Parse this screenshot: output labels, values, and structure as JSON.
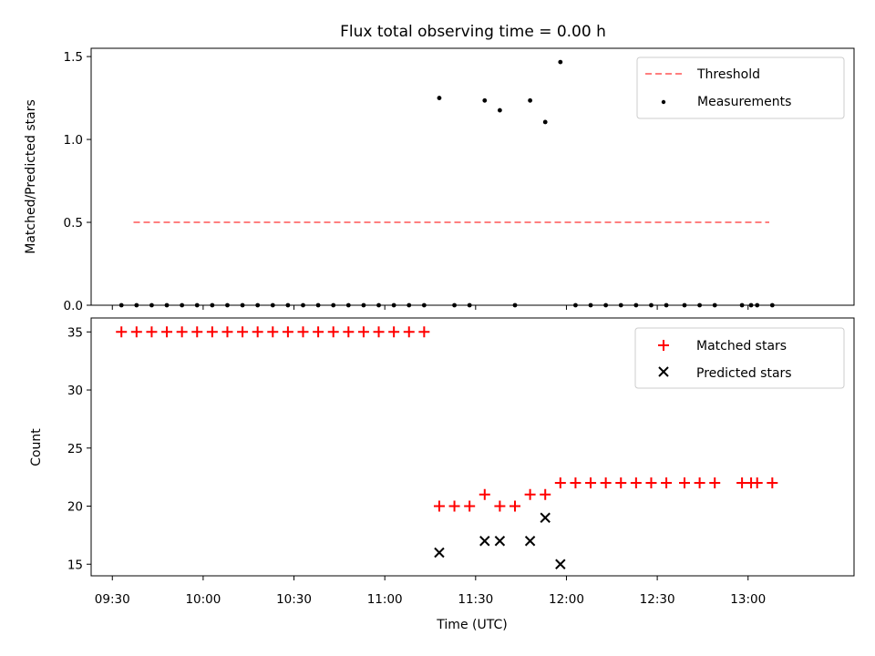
{
  "chart_data": [
    {
      "type": "scatter",
      "title": "Flux total observing time = 0.00 h",
      "xlabel": "",
      "ylabel": "Matched/Predicted stars",
      "ylim": [
        0,
        1.55
      ],
      "yticks": [
        "0.0",
        "0.5",
        "1.0",
        "1.5"
      ],
      "legend_position": "top-right",
      "threshold": {
        "name": "Threshold",
        "value": 0.5,
        "x_start": "09:37",
        "x_end": "13:07",
        "color": "#ff7f7f"
      },
      "series": [
        {
          "name": "Measurements",
          "color": "#000000",
          "points": [
            [
              "09:33",
              0
            ],
            [
              "09:38",
              0
            ],
            [
              "09:43",
              0
            ],
            [
              "09:48",
              0
            ],
            [
              "09:53",
              0
            ],
            [
              "09:58",
              0
            ],
            [
              "10:03",
              0
            ],
            [
              "10:08",
              0
            ],
            [
              "10:13",
              0
            ],
            [
              "10:18",
              0
            ],
            [
              "10:23",
              0
            ],
            [
              "10:28",
              0
            ],
            [
              "10:33",
              0
            ],
            [
              "10:38",
              0
            ],
            [
              "10:43",
              0
            ],
            [
              "10:48",
              0
            ],
            [
              "10:53",
              0
            ],
            [
              "10:58",
              0
            ],
            [
              "11:03",
              0
            ],
            [
              "11:08",
              0
            ],
            [
              "11:13",
              0
            ],
            [
              "11:18",
              1.25
            ],
            [
              "11:23",
              0
            ],
            [
              "11:28",
              0
            ],
            [
              "11:33",
              1.235
            ],
            [
              "11:38",
              1.176
            ],
            [
              "11:43",
              0
            ],
            [
              "11:48",
              1.235
            ],
            [
              "11:53",
              1.105
            ],
            [
              "11:58",
              1.467
            ],
            [
              "12:03",
              0
            ],
            [
              "12:08",
              0
            ],
            [
              "12:13",
              0
            ],
            [
              "12:18",
              0
            ],
            [
              "12:23",
              0
            ],
            [
              "12:28",
              0
            ],
            [
              "12:33",
              0
            ],
            [
              "12:39",
              0
            ],
            [
              "12:44",
              0
            ],
            [
              "12:49",
              0
            ],
            [
              "12:58",
              0
            ],
            [
              "13:01",
              0
            ],
            [
              "13:03",
              0
            ],
            [
              "13:08",
              0
            ]
          ]
        }
      ]
    },
    {
      "type": "scatter",
      "title": "",
      "xlabel": "Time (UTC)",
      "ylabel": "Count",
      "ylim": [
        14,
        36.2
      ],
      "yticks": [
        "15",
        "20",
        "25",
        "30",
        "35"
      ],
      "xlim": [
        "09:23",
        "13:35"
      ],
      "xticks": [
        "09:30",
        "10:00",
        "10:30",
        "11:00",
        "11:30",
        "12:00",
        "12:30",
        "13:00"
      ],
      "legend_position": "top-right",
      "series": [
        {
          "name": "Matched stars",
          "marker": "plus",
          "color": "#ff0000",
          "points": [
            [
              "09:33",
              35
            ],
            [
              "09:38",
              35
            ],
            [
              "09:43",
              35
            ],
            [
              "09:48",
              35
            ],
            [
              "09:53",
              35
            ],
            [
              "09:58",
              35
            ],
            [
              "10:03",
              35
            ],
            [
              "10:08",
              35
            ],
            [
              "10:13",
              35
            ],
            [
              "10:18",
              35
            ],
            [
              "10:23",
              35
            ],
            [
              "10:28",
              35
            ],
            [
              "10:33",
              35
            ],
            [
              "10:38",
              35
            ],
            [
              "10:43",
              35
            ],
            [
              "10:48",
              35
            ],
            [
              "10:53",
              35
            ],
            [
              "10:58",
              35
            ],
            [
              "11:03",
              35
            ],
            [
              "11:08",
              35
            ],
            [
              "11:13",
              35
            ],
            [
              "11:18",
              20
            ],
            [
              "11:23",
              20
            ],
            [
              "11:28",
              20
            ],
            [
              "11:33",
              21
            ],
            [
              "11:38",
              20
            ],
            [
              "11:43",
              20
            ],
            [
              "11:48",
              21
            ],
            [
              "11:53",
              21
            ],
            [
              "11:58",
              22
            ],
            [
              "12:03",
              22
            ],
            [
              "12:08",
              22
            ],
            [
              "12:13",
              22
            ],
            [
              "12:18",
              22
            ],
            [
              "12:23",
              22
            ],
            [
              "12:28",
              22
            ],
            [
              "12:33",
              22
            ],
            [
              "12:39",
              22
            ],
            [
              "12:44",
              22
            ],
            [
              "12:49",
              22
            ],
            [
              "12:58",
              22
            ],
            [
              "13:01",
              22
            ],
            [
              "13:03",
              22
            ],
            [
              "13:08",
              22
            ]
          ]
        },
        {
          "name": "Predicted stars",
          "marker": "x",
          "color": "#000000",
          "points": [
            [
              "11:18",
              16
            ],
            [
              "11:33",
              17
            ],
            [
              "11:38",
              17
            ],
            [
              "11:48",
              17
            ],
            [
              "11:53",
              19
            ],
            [
              "11:58",
              15
            ]
          ]
        }
      ]
    }
  ]
}
